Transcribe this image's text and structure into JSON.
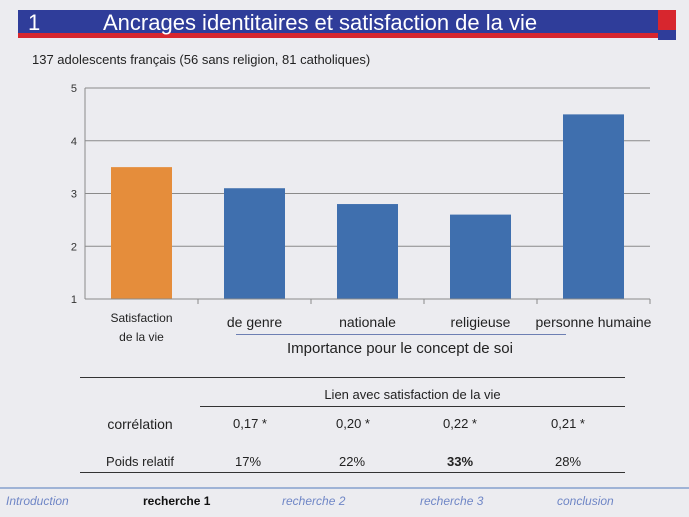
{
  "slide": {
    "number": "1",
    "title": "Ancrages identitaires et satisfaction de la vie",
    "subtitle": "137 adolescents français (56 sans religion, 81 catholiques)"
  },
  "chart_data": {
    "type": "bar",
    "categories": [
      "Satisfaction de la vie",
      "de genre",
      "nationale",
      "religieuse",
      "personne humaine"
    ],
    "category_lines": [
      [
        "Satisfaction",
        "de la vie"
      ],
      [
        "de genre"
      ],
      [
        "nationale"
      ],
      [
        "religieuse"
      ],
      [
        "personne humaine"
      ]
    ],
    "values": [
      3.5,
      3.1,
      2.8,
      2.6,
      4.5
    ],
    "colors": [
      "#e58d3b",
      "#3f6fae",
      "#3f6fae",
      "#3f6fae",
      "#3f6fae"
    ],
    "ylim": [
      1,
      5
    ],
    "yticks": [
      1,
      2,
      3,
      4,
      5
    ],
    "grid": true,
    "group_label": "Importance pour le concept de soi"
  },
  "table": {
    "header": "Lien avec satisfaction de la vie",
    "rows": [
      {
        "label": "corrélation",
        "values": [
          "0,17 *",
          "0,20 *",
          "0,22 *",
          "0,21 *"
        ]
      },
      {
        "label": "Poids relatif",
        "values": [
          "17%",
          "22%",
          "33%",
          "28%"
        ],
        "bold_index": 2
      }
    ]
  },
  "nav": {
    "items": [
      "Introduction",
      "recherche 1",
      "recherche 2",
      "recherche 3",
      "conclusion"
    ],
    "active": 1
  },
  "colors": {
    "title_bar": "#2f3d9a",
    "title_accent": "#d7262e",
    "orange_bar": "#e58d3b",
    "blue_bar": "#3f6fae",
    "nav_link": "#6f86c6"
  }
}
